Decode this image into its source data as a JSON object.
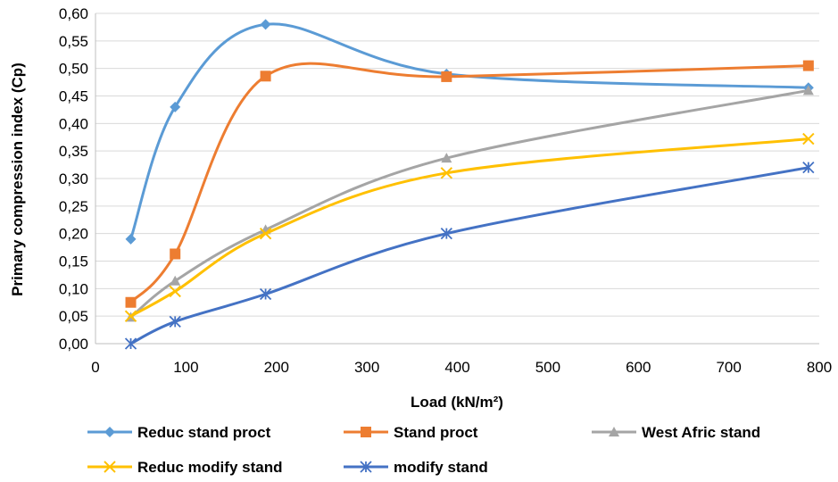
{
  "chart_data": {
    "type": "line",
    "title": "",
    "xlabel": "Load (kN/m²)",
    "ylabel": "Primary compression index (Cp)",
    "xlim": [
      0,
      800
    ],
    "ylim": [
      0,
      0.6
    ],
    "x_ticks": [
      "0",
      "100",
      "200",
      "300",
      "400",
      "500",
      "600",
      "700",
      "800"
    ],
    "y_ticks": [
      "0,00",
      "0,05",
      "0,10",
      "0,15",
      "0,20",
      "0,25",
      "0,30",
      "0,35",
      "0,40",
      "0,45",
      "0,50",
      "0,55",
      "0,60"
    ],
    "grid": "horizontal",
    "legend_position": "bottom",
    "x": [
      39,
      88,
      188,
      388,
      788
    ],
    "series": [
      {
        "name": "Reduc stand proct",
        "color": "#5b9bd5",
        "marker": "diamond",
        "values": [
          0.19,
          0.43,
          0.58,
          0.49,
          0.465
        ]
      },
      {
        "name": "Stand proct",
        "color": "#ed7d31",
        "marker": "square",
        "values": [
          0.075,
          0.163,
          0.486,
          0.485,
          0.505
        ]
      },
      {
        "name": "West Afric stand",
        "color": "#a5a5a5",
        "marker": "triangle",
        "values": [
          0.048,
          0.114,
          0.207,
          0.337,
          0.46
        ]
      },
      {
        "name": "Reduc modify stand",
        "color": "#ffc000",
        "marker": "x",
        "values": [
          0.05,
          0.095,
          0.2,
          0.31,
          0.372
        ]
      },
      {
        "name": "modify stand",
        "color": "#4472c4",
        "marker": "star",
        "values": [
          0.0,
          0.04,
          0.09,
          0.2,
          0.32
        ]
      }
    ]
  }
}
